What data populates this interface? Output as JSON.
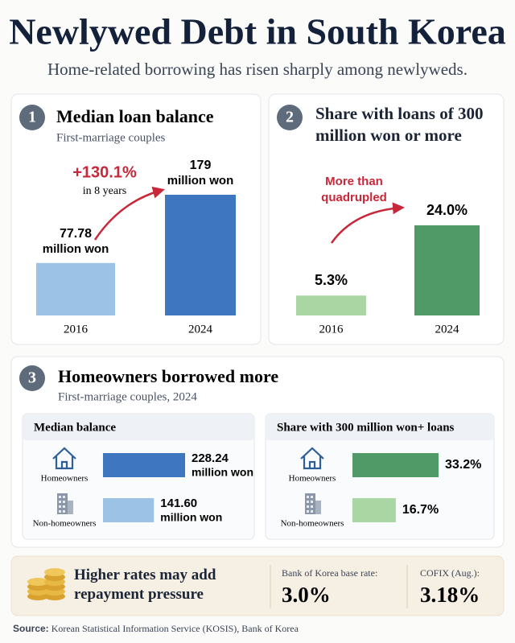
{
  "header": {
    "title": "Newlywed Debt in South Korea",
    "subtitle": "Home-related borrowing has risen sharply among newlyweds."
  },
  "panels": [
    {
      "number": "1",
      "title": "Median loan balance",
      "subtitle": "First-marriage couples",
      "annotation": "+130.1%",
      "annotation_note": "in 8 years",
      "chart": {
        "type": "bar",
        "categories": [
          "2016",
          "2024"
        ],
        "values": [
          77.78,
          179
        ],
        "unit": "million won",
        "colors": [
          "#9cc2e6",
          "#3e76c0"
        ]
      }
    },
    {
      "number": "2",
      "title": "Share with loans of 300 million won or more",
      "annotation": "More than quadrupled",
      "chart": {
        "type": "bar",
        "categories": [
          "2016",
          "2024"
        ],
        "values": [
          5.3,
          24.0
        ],
        "value_labels": [
          "5.3%",
          "24.0%"
        ],
        "colors": [
          "#a9d6a3",
          "#4f9a67"
        ]
      }
    },
    {
      "number": "3",
      "title": "Homeowners borrowed more",
      "subtitle": "First-marriage couples, 2024",
      "charts": [
        {
          "type": "hbar",
          "title": "Median balance",
          "categories": [
            "Homeowners",
            "Non-homeowners"
          ],
          "values": [
            228.24,
            141.6
          ],
          "value_labels": [
            "228.24",
            "141.60"
          ],
          "unit": "million won",
          "colors": [
            "#3e76c0",
            "#9cc2e6"
          ]
        },
        {
          "type": "hbar",
          "title": "Share with 300 million won+ loans",
          "categories": [
            "Homeowners",
            "Non-homeowners"
          ],
          "values": [
            33.2,
            16.7
          ],
          "value_labels": [
            "33.2%",
            "16.7%"
          ],
          "colors": [
            "#4f9a67",
            "#a9d6a3"
          ]
        }
      ]
    }
  ],
  "footer": {
    "message": "Higher rates may add repayment pressure",
    "rates": [
      {
        "label": "Bank of Korea base rate:",
        "value": "3.0%"
      },
      {
        "label": "COFIX (Aug.):",
        "value": "3.18%"
      }
    ]
  },
  "source": {
    "label": "Source:",
    "text": "Korean Statistical Information Service (KOSIS), Bank of Korea"
  }
}
